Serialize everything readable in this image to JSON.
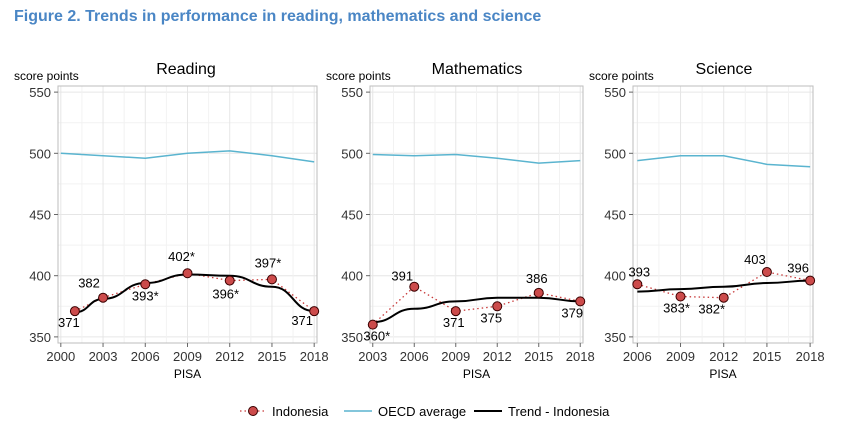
{
  "figure_title": "Figure 2. Trends in performance in reading, mathematics and science",
  "colors": {
    "indonesia_fill": "#cc4b4b",
    "indonesia_line": "#c83a3a",
    "oecd": "#5ab4cf",
    "trend": "#000000",
    "title": "#4a86c5"
  },
  "legend": {
    "indonesia": "Indonesia",
    "oecd": "OECD average",
    "trend": "Trend - Indonesia"
  },
  "chart_data": [
    {
      "type": "line",
      "title": "Reading",
      "ylabel": "score points",
      "xlabel": "PISA",
      "ylim": [
        345,
        555
      ],
      "yticks": [
        350,
        400,
        450,
        500,
        550
      ],
      "xticks": [
        2000,
        2003,
        2006,
        2009,
        2012,
        2015,
        2018
      ],
      "xlim": [
        1999.8,
        2018.2
      ],
      "indonesia": {
        "x": [
          2001,
          2003,
          2006,
          2009,
          2012,
          2015,
          2018
        ],
        "values": [
          371,
          382,
          393,
          402,
          396,
          397,
          371
        ],
        "labels": [
          "371",
          "382",
          "393*",
          "402*",
          "396*",
          "397*",
          "371"
        ]
      },
      "oecd": {
        "x": [
          2000,
          2003,
          2006,
          2009,
          2012,
          2015,
          2018
        ],
        "values": [
          500,
          498,
          496,
          500,
          502,
          498,
          493
        ]
      },
      "trend": {
        "x": [
          2001,
          2003,
          2006,
          2009,
          2012,
          2015,
          2018
        ],
        "values": [
          370,
          381,
          394,
          401,
          400,
          391,
          371
        ]
      }
    },
    {
      "type": "line",
      "title": "Mathematics",
      "ylabel": "score points",
      "xlabel": "PISA",
      "ylim": [
        345,
        555
      ],
      "yticks": [
        350,
        400,
        450,
        500,
        550
      ],
      "xticks": [
        2003,
        2006,
        2009,
        2012,
        2015,
        2018
      ],
      "xlim": [
        2002.8,
        2018.2
      ],
      "indonesia": {
        "x": [
          2003,
          2006,
          2009,
          2012,
          2015,
          2018
        ],
        "values": [
          360,
          391,
          371,
          375,
          386,
          379
        ],
        "labels": [
          "360*",
          "391",
          "371",
          "375",
          "386",
          "379"
        ]
      },
      "oecd": {
        "x": [
          2003,
          2006,
          2009,
          2012,
          2015,
          2018
        ],
        "values": [
          499,
          498,
          499,
          496,
          492,
          494
        ]
      },
      "trend": {
        "x": [
          2003,
          2006,
          2009,
          2012,
          2015,
          2018
        ],
        "values": [
          362,
          373,
          379,
          382,
          382,
          379
        ]
      }
    },
    {
      "type": "line",
      "title": "Science",
      "ylabel": "score points",
      "xlabel": "PISA",
      "ylim": [
        345,
        555
      ],
      "yticks": [
        350,
        400,
        450,
        500,
        550
      ],
      "xticks": [
        2006,
        2009,
        2012,
        2015,
        2018
      ],
      "xlim": [
        2005.7,
        2018.2
      ],
      "indonesia": {
        "x": [
          2006,
          2009,
          2012,
          2015,
          2018
        ],
        "values": [
          393,
          383,
          382,
          403,
          396
        ],
        "labels": [
          "393",
          "383*",
          "382*",
          "403",
          "396"
        ]
      },
      "oecd": {
        "x": [
          2006,
          2009,
          2012,
          2015,
          2018
        ],
        "values": [
          494,
          498,
          498,
          491,
          489
        ]
      },
      "trend": {
        "x": [
          2006,
          2009,
          2012,
          2015,
          2018
        ],
        "values": [
          387,
          389,
          391,
          394,
          396
        ]
      }
    }
  ]
}
